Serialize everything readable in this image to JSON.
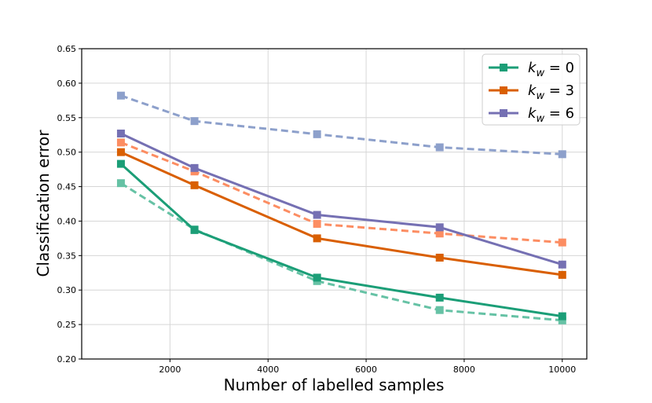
{
  "chart_data": {
    "type": "line",
    "title": "",
    "xlabel": "Number of labelled samples",
    "ylabel": "Classification error",
    "xlim": [
      200,
      10500
    ],
    "ylim": [
      0.2,
      0.65
    ],
    "grid": true,
    "x_ticks": [
      2000,
      4000,
      6000,
      8000,
      10000
    ],
    "x_tick_labels": [
      "2000",
      "4000",
      "6000",
      "8000",
      "10000"
    ],
    "y_ticks": [
      0.2,
      0.25,
      0.3,
      0.35,
      0.4,
      0.45,
      0.5,
      0.55,
      0.6,
      0.65
    ],
    "y_tick_labels": [
      "0.20",
      "0.25",
      "0.30",
      "0.35",
      "0.40",
      "0.45",
      "0.50",
      "0.55",
      "0.60",
      "0.65"
    ],
    "x": [
      1000,
      2500,
      5000,
      7500,
      10000
    ],
    "legend_position": "upper-right",
    "legend": [
      {
        "main": "k",
        "sub": "w",
        "rest": " = 0",
        "color": "#1b9e77"
      },
      {
        "main": "k",
        "sub": "w",
        "rest": " = 3",
        "color": "#d95f02"
      },
      {
        "main": "k",
        "sub": "w",
        "rest": " = 6",
        "color": "#7570b3"
      }
    ],
    "series": [
      {
        "name": "k_w = 0",
        "style": "solid",
        "color": "#1b9e77",
        "values": [
          0.483,
          0.387,
          0.318,
          0.289,
          0.262
        ]
      },
      {
        "name": "k_w = 0 (dashed)",
        "style": "dashed",
        "color": "#66c2a5",
        "values": [
          0.455,
          0.388,
          0.313,
          0.271,
          0.256
        ]
      },
      {
        "name": "k_w = 3",
        "style": "solid",
        "color": "#d95f02",
        "values": [
          0.5,
          0.452,
          0.375,
          0.347,
          0.322
        ]
      },
      {
        "name": "k_w = 3 (dashed)",
        "style": "dashed",
        "color": "#fc8d62",
        "values": [
          0.514,
          0.472,
          0.396,
          0.382,
          0.369
        ]
      },
      {
        "name": "k_w = 6",
        "style": "solid",
        "color": "#7570b3",
        "values": [
          0.527,
          0.477,
          0.409,
          0.391,
          0.337
        ]
      },
      {
        "name": "k_w = 6 (dashed)",
        "style": "dashed",
        "color": "#8da0cb",
        "values": [
          0.582,
          0.545,
          0.526,
          0.507,
          0.497
        ]
      }
    ]
  }
}
